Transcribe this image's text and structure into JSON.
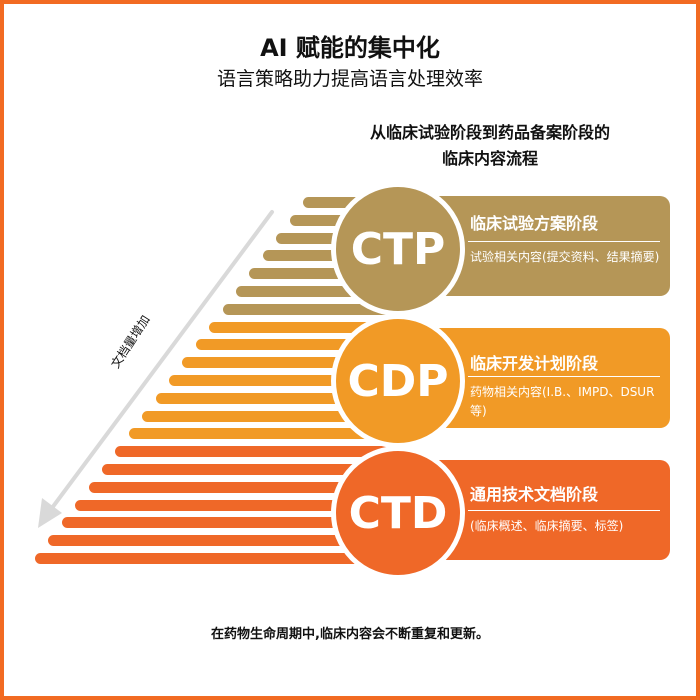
{
  "header": {
    "title": "AI 赋能的集中化",
    "subtitle": "语言策略助力提高语言处理效率"
  },
  "flow_title": {
    "line1": "从临床试验阶段到药品备案阶段的",
    "line2": "临床内容流程"
  },
  "axis_label": "文档量增加",
  "stages": [
    {
      "abbr": "CTP",
      "name": "临床试验方案阶段",
      "desc": "试验相关内容(提交资料、结果摘要)",
      "color": "#b59657"
    },
    {
      "abbr": "CDP",
      "name": "临床开发计划阶段",
      "desc": "药物相关内容(I.B.、IMPD、DSUR 等)",
      "color": "#f19a26"
    },
    {
      "abbr": "CTD",
      "name": "通用技术文档阶段",
      "desc": "(临床概述、临床摘要、标签)",
      "color": "#ef6828"
    }
  ],
  "footer": "在药物生命周期中,临床内容会不断重复和更新。",
  "colors": {
    "border": "#f26b22",
    "ctp": "#b59657",
    "cdp": "#f19a26",
    "ctd": "#ef6828"
  }
}
